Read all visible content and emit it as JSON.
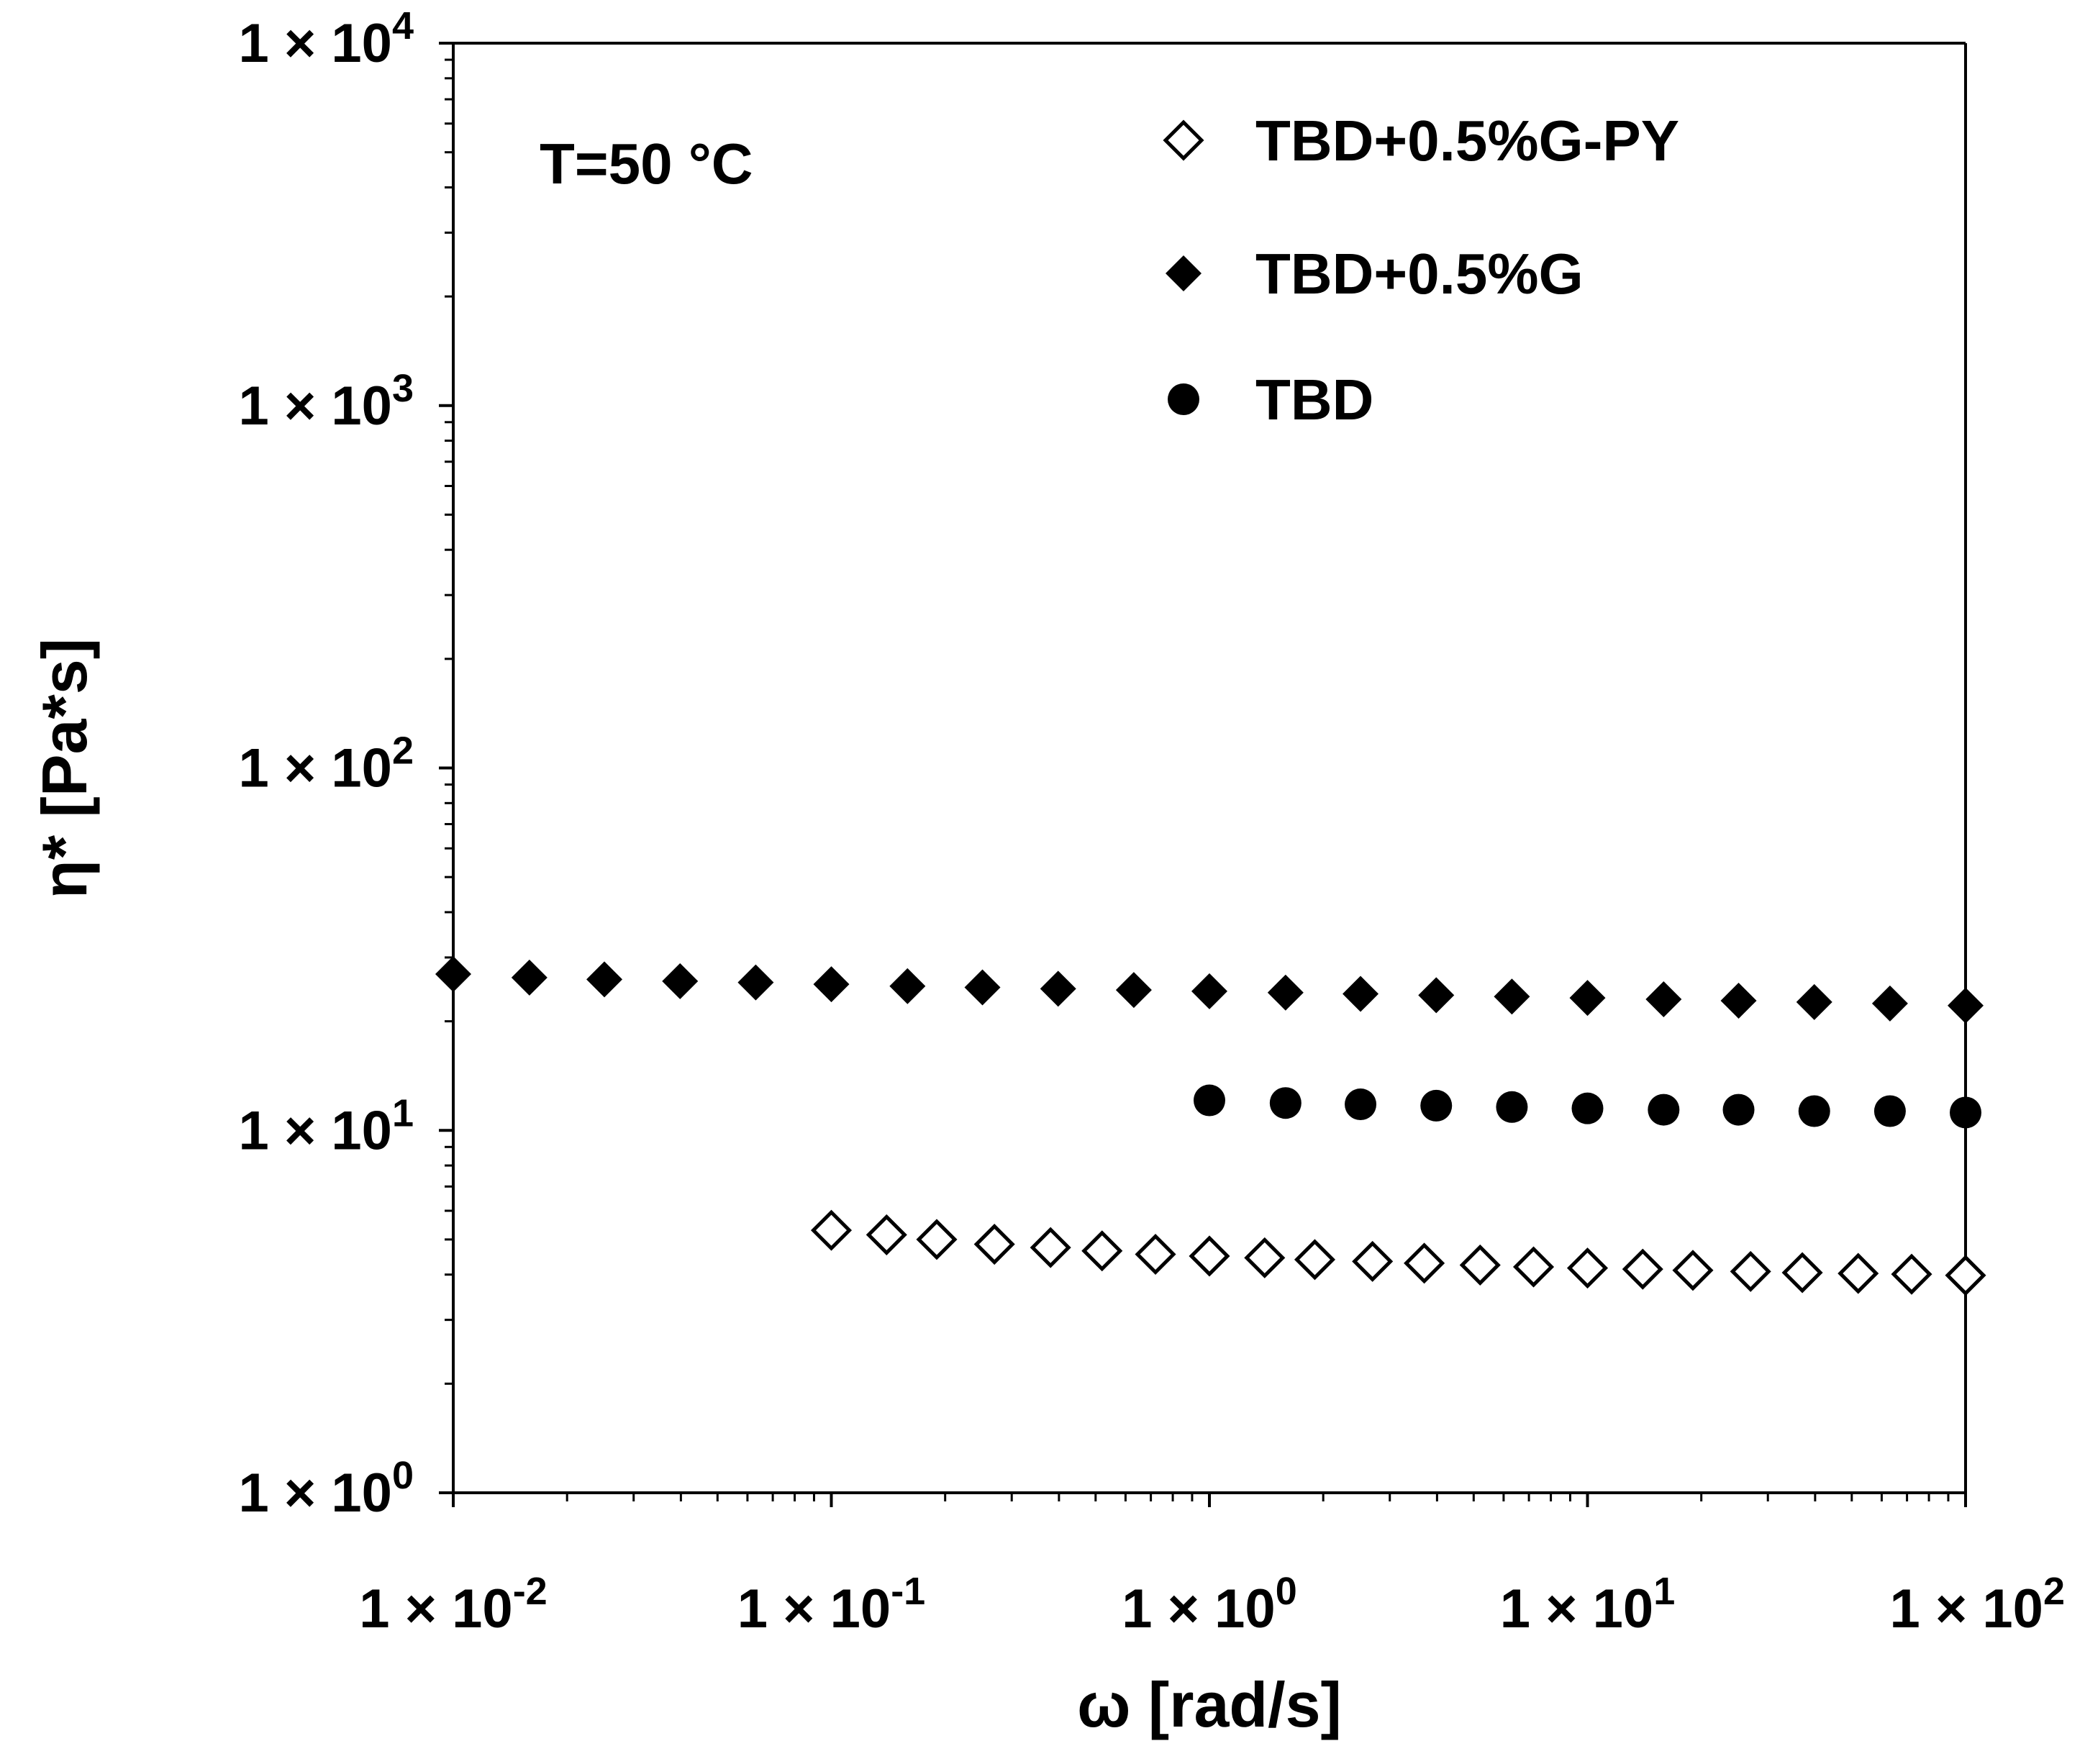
{
  "chart_data": {
    "type": "scatter",
    "annotation": "T=50 °C",
    "xlabel": "ω [rad/s]",
    "ylabel": "η* [Pa*s]",
    "xscale": "log",
    "yscale": "log",
    "xlim": [
      0.01,
      100
    ],
    "ylim": [
      1,
      10000
    ],
    "x_ticks": [
      {
        "base": "1 × 10",
        "exp": "-2"
      },
      {
        "base": "1 × 10",
        "exp": "-1"
      },
      {
        "base": "1 × 10",
        "exp": "0"
      },
      {
        "base": "1 × 10",
        "exp": "1"
      },
      {
        "base": "1 × 10",
        "exp": "2"
      }
    ],
    "y_ticks": [
      {
        "base": "1 × 10",
        "exp": "0"
      },
      {
        "base": "1 × 10",
        "exp": "1"
      },
      {
        "base": "1 × 10",
        "exp": "2"
      },
      {
        "base": "1 × 10",
        "exp": "3"
      },
      {
        "base": "1 × 10",
        "exp": "4"
      }
    ],
    "grid": false,
    "legend_position": "top-right",
    "series": [
      {
        "name": "TBD+0.5%G-PY",
        "marker": "open-diamond",
        "color": "#000000",
        "x": [
          0.1,
          0.14,
          0.19,
          0.27,
          0.38,
          0.52,
          0.72,
          1.0,
          1.4,
          1.9,
          2.7,
          3.7,
          5.2,
          7.2,
          10,
          14,
          19,
          27,
          37,
          52,
          72,
          100
        ],
        "y": [
          5.3,
          5.15,
          5.0,
          4.85,
          4.75,
          4.65,
          4.55,
          4.5,
          4.45,
          4.4,
          4.35,
          4.3,
          4.25,
          4.2,
          4.17,
          4.14,
          4.11,
          4.08,
          4.05,
          4.03,
          4.01,
          3.98
        ]
      },
      {
        "name": "TBD+0.5%G",
        "marker": "filled-diamond",
        "color": "#000000",
        "x": [
          0.01,
          0.0159,
          0.0251,
          0.0398,
          0.0631,
          0.1,
          0.159,
          0.251,
          0.398,
          0.631,
          1.0,
          1.59,
          2.51,
          3.98,
          6.31,
          10,
          15.9,
          25.1,
          39.8,
          63.1,
          100
        ],
        "y": [
          27.0,
          26.4,
          26.1,
          25.8,
          25.6,
          25.3,
          25.0,
          24.8,
          24.6,
          24.4,
          24.2,
          24.0,
          23.8,
          23.6,
          23.4,
          23.2,
          23.0,
          22.8,
          22.6,
          22.4,
          22.1
        ]
      },
      {
        "name": "TBD",
        "marker": "filled-circle",
        "color": "#000000",
        "x": [
          1.0,
          1.59,
          2.51,
          3.98,
          6.31,
          10,
          15.9,
          25.1,
          39.8,
          63.1,
          100
        ],
        "y": [
          12.1,
          11.9,
          11.8,
          11.7,
          11.6,
          11.5,
          11.4,
          11.4,
          11.3,
          11.3,
          11.2
        ]
      }
    ]
  }
}
